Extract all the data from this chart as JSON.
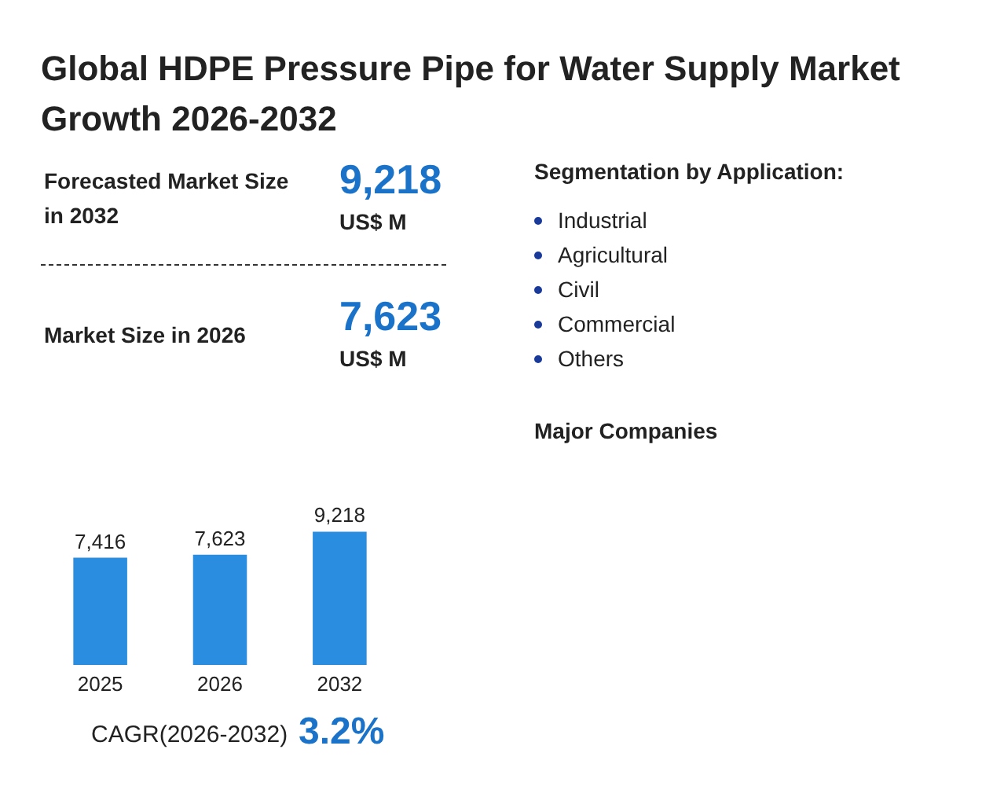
{
  "chart_data": {
    "type": "bar",
    "title": "Global HDPE Pressure Pipe for Water Supply Market Growth 2026-2032",
    "categories": [
      "2025",
      "2026",
      "2032"
    ],
    "values": [
      7416,
      7623,
      9218
    ],
    "color": "#2b8de0",
    "value_labels": [
      "7,416",
      "7,623",
      "9,218"
    ],
    "annotations": [
      "Forecasted Market Size in 2032",
      "9,218",
      "US$ M",
      "Market Size in 2026",
      "7,623",
      "US$ M",
      "Segmentation by Application:",
      "Industrial",
      "Agricultural",
      "Civil",
      "Commercial",
      "Others",
      "Major Companies",
      "CAGR(2026-2032)",
      "3.2%"
    ]
  }
}
